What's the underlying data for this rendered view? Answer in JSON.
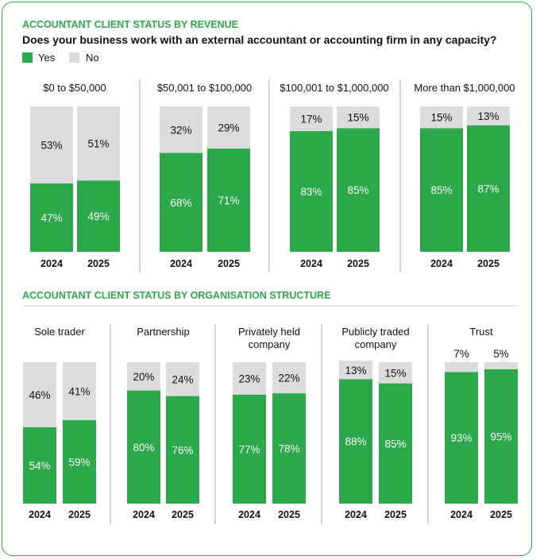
{
  "colors": {
    "yes": "#2aa84a",
    "no": "#dcdcdc",
    "accent": "#2ea84b",
    "text": "#111111",
    "divider": "#bdbdbd"
  },
  "title": "ACCOUNTANT CLIENT STATUS BY REVENUE",
  "question": "Does your business work with an external accountant or accounting firm in any capacity?",
  "legend": {
    "yes": "Yes",
    "no": "No"
  },
  "chart_data": [
    {
      "type": "bar",
      "stacked": true,
      "title": "ACCOUNTANT CLIENT STATUS BY REVENUE",
      "years": [
        "2024",
        "2025"
      ],
      "series_names": [
        "Yes",
        "No"
      ],
      "groups": [
        {
          "label": "$0 to $50,000",
          "yes": [
            47,
            49
          ],
          "no": [
            53,
            51
          ]
        },
        {
          "label": "$50,001 to $100,000",
          "yes": [
            68,
            71
          ],
          "no": [
            32,
            29
          ]
        },
        {
          "label": "$100,001 to $1,000,000",
          "yes": [
            83,
            85
          ],
          "no": [
            17,
            15
          ]
        },
        {
          "label": "More than $1,000,000",
          "yes": [
            85,
            87
          ],
          "no": [
            15,
            13
          ]
        }
      ],
      "ylim": [
        0,
        100
      ]
    },
    {
      "type": "bar",
      "stacked": true,
      "title": "ACCOUNTANT CLIENT STATUS BY ORGANISATION STRUCTURE",
      "years": [
        "2024",
        "2025"
      ],
      "series_names": [
        "Yes",
        "No"
      ],
      "groups": [
        {
          "label": [
            "Sole trader"
          ],
          "yes": [
            54,
            59
          ],
          "no": [
            46,
            41
          ]
        },
        {
          "label": [
            "Partnership"
          ],
          "yes": [
            80,
            76
          ],
          "no": [
            20,
            24
          ]
        },
        {
          "label": [
            "Privately held",
            "company"
          ],
          "yes": [
            77,
            78
          ],
          "no": [
            23,
            22
          ]
        },
        {
          "label": [
            "Publicly traded",
            "company"
          ],
          "yes": [
            88,
            85
          ],
          "no": [
            13,
            15
          ]
        },
        {
          "label": [
            "Trust"
          ],
          "yes": [
            93,
            95
          ],
          "no": [
            7,
            5
          ]
        }
      ],
      "ylim": [
        0,
        100
      ]
    }
  ]
}
